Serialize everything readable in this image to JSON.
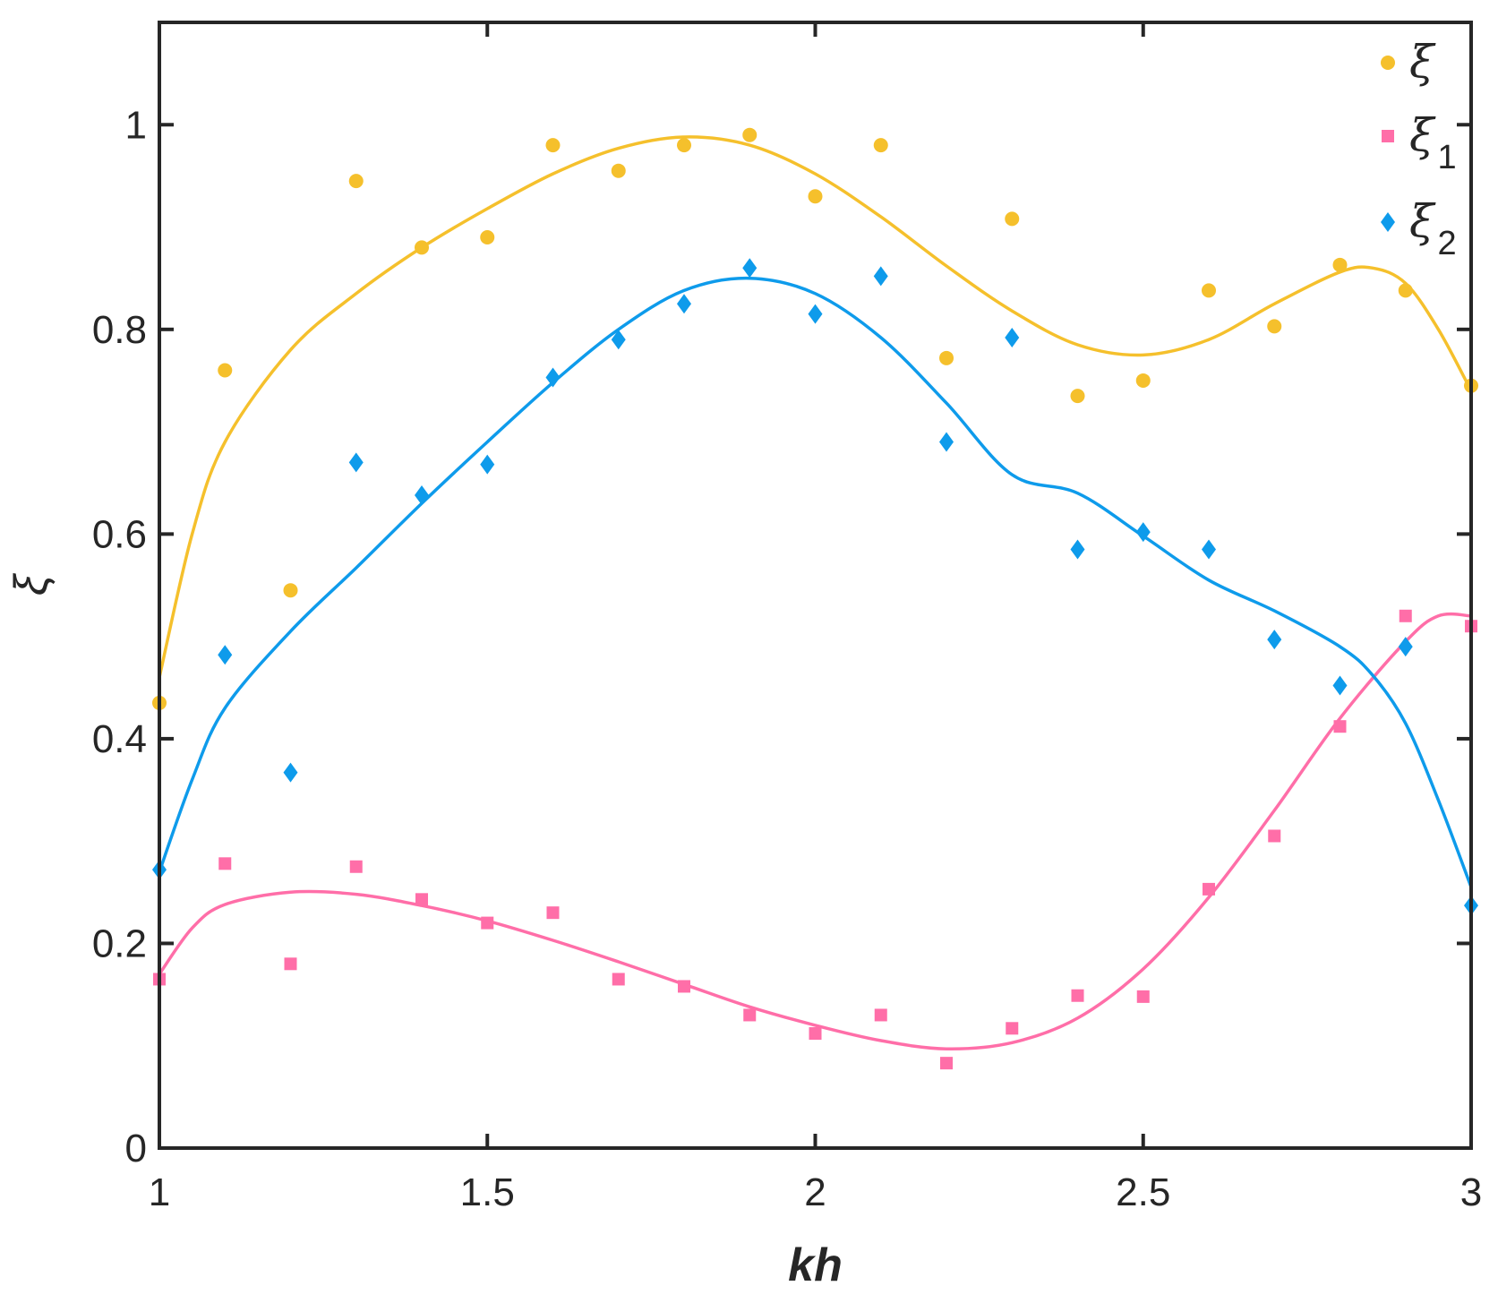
{
  "chart_data": {
    "type": "scatter",
    "xlabel": "kh",
    "ylabel": "ξ",
    "xlim": [
      1,
      3
    ],
    "ylim": [
      0,
      1.1
    ],
    "x_ticks": [
      1,
      1.5,
      2,
      2.5,
      3
    ],
    "x_tick_labels": [
      "1",
      "1.5",
      "2",
      "2.5",
      "3"
    ],
    "y_ticks": [
      0,
      0.2,
      0.4,
      0.6,
      0.8,
      1
    ],
    "y_tick_labels": [
      "0",
      "0.2",
      "0.4",
      "0.6",
      "0.8",
      "1"
    ],
    "grid": false,
    "legend_position": "top-right",
    "x": [
      1.0,
      1.1,
      1.2,
      1.3,
      1.4,
      1.5,
      1.6,
      1.7,
      1.8,
      1.9,
      2.0,
      2.1,
      2.2,
      2.3,
      2.4,
      2.5,
      2.6,
      2.7,
      2.8,
      2.9,
      3.0
    ],
    "series": [
      {
        "name": "ξ",
        "legend_main": "ξ",
        "legend_sub": "",
        "marker": "circle",
        "color": "#F5C02C",
        "values": [
          0.435,
          0.76,
          0.545,
          0.945,
          0.88,
          0.89,
          0.98,
          0.955,
          0.98,
          0.99,
          0.93,
          0.98,
          0.772,
          0.908,
          0.735,
          0.75,
          0.838,
          0.803,
          0.863,
          0.838,
          0.745
        ],
        "fit": [
          [
            1.0,
            0.46
          ],
          [
            1.05,
            0.6
          ],
          [
            1.1,
            0.69
          ],
          [
            1.2,
            0.78
          ],
          [
            1.3,
            0.835
          ],
          [
            1.4,
            0.88
          ],
          [
            1.5,
            0.918
          ],
          [
            1.6,
            0.952
          ],
          [
            1.7,
            0.977
          ],
          [
            1.8,
            0.988
          ],
          [
            1.9,
            0.98
          ],
          [
            2.0,
            0.952
          ],
          [
            2.1,
            0.91
          ],
          [
            2.2,
            0.862
          ],
          [
            2.3,
            0.818
          ],
          [
            2.4,
            0.785
          ],
          [
            2.5,
            0.775
          ],
          [
            2.6,
            0.79
          ],
          [
            2.7,
            0.825
          ],
          [
            2.8,
            0.856
          ],
          [
            2.85,
            0.86
          ],
          [
            2.9,
            0.845
          ],
          [
            2.95,
            0.8
          ],
          [
            3.0,
            0.74
          ]
        ]
      },
      {
        "name": "ξ1",
        "legend_main": "ξ",
        "legend_sub": "1",
        "marker": "square",
        "color": "#FF6EA8",
        "values": [
          0.165,
          0.278,
          0.18,
          0.275,
          0.243,
          0.22,
          0.23,
          0.165,
          0.158,
          0.13,
          0.112,
          0.13,
          0.083,
          0.117,
          0.149,
          0.148,
          0.253,
          0.305,
          0.412,
          0.52,
          0.51
        ],
        "fit": [
          [
            1.0,
            0.17
          ],
          [
            1.05,
            0.215
          ],
          [
            1.1,
            0.238
          ],
          [
            1.2,
            0.25
          ],
          [
            1.3,
            0.248
          ],
          [
            1.4,
            0.237
          ],
          [
            1.5,
            0.222
          ],
          [
            1.6,
            0.203
          ],
          [
            1.7,
            0.182
          ],
          [
            1.8,
            0.16
          ],
          [
            1.9,
            0.138
          ],
          [
            2.0,
            0.12
          ],
          [
            2.1,
            0.105
          ],
          [
            2.2,
            0.097
          ],
          [
            2.3,
            0.103
          ],
          [
            2.4,
            0.127
          ],
          [
            2.5,
            0.175
          ],
          [
            2.6,
            0.245
          ],
          [
            2.7,
            0.33
          ],
          [
            2.8,
            0.42
          ],
          [
            2.9,
            0.495
          ],
          [
            2.95,
            0.52
          ],
          [
            3.0,
            0.52
          ]
        ]
      },
      {
        "name": "ξ2",
        "legend_main": "ξ",
        "legend_sub": "2",
        "marker": "diamond",
        "color": "#0E9BEB",
        "values": [
          0.272,
          0.482,
          0.367,
          0.67,
          0.638,
          0.668,
          0.753,
          0.79,
          0.825,
          0.86,
          0.815,
          0.852,
          0.69,
          0.792,
          0.585,
          0.602,
          0.585,
          0.497,
          0.452,
          0.49,
          0.237
        ],
        "fit": [
          [
            1.0,
            0.27
          ],
          [
            1.05,
            0.36
          ],
          [
            1.1,
            0.43
          ],
          [
            1.2,
            0.505
          ],
          [
            1.3,
            0.567
          ],
          [
            1.4,
            0.63
          ],
          [
            1.5,
            0.69
          ],
          [
            1.6,
            0.748
          ],
          [
            1.7,
            0.8
          ],
          [
            1.8,
            0.838
          ],
          [
            1.9,
            0.85
          ],
          [
            2.0,
            0.835
          ],
          [
            2.1,
            0.792
          ],
          [
            2.2,
            0.728
          ],
          [
            2.3,
            0.658
          ],
          [
            2.4,
            0.64
          ],
          [
            2.5,
            0.598
          ],
          [
            2.6,
            0.555
          ],
          [
            2.7,
            0.525
          ],
          [
            2.8,
            0.49
          ],
          [
            2.85,
            0.462
          ],
          [
            2.9,
            0.415
          ],
          [
            2.95,
            0.34
          ],
          [
            3.0,
            0.255
          ]
        ]
      }
    ]
  }
}
